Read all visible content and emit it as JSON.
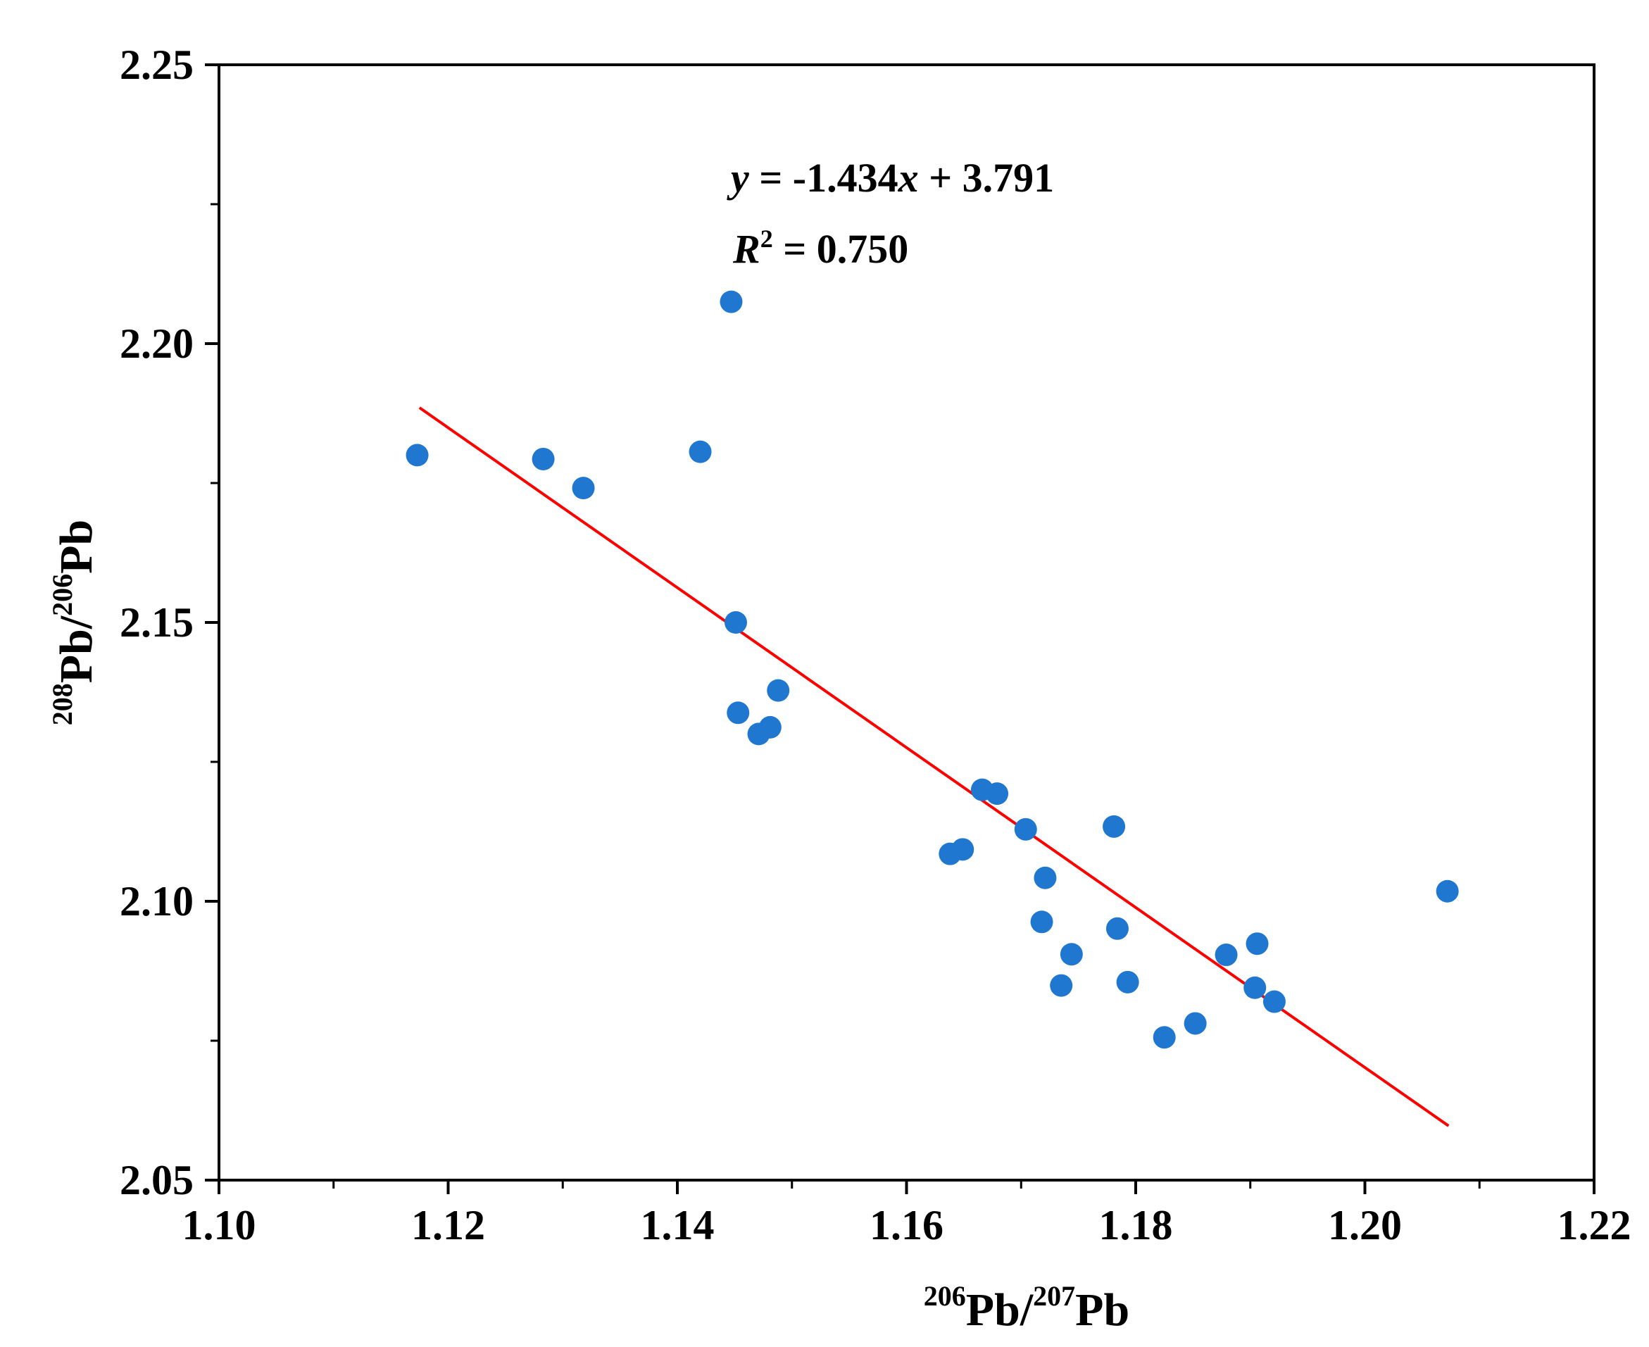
{
  "chart_data": {
    "type": "scatter",
    "xlabel": {
      "iso_a": "206",
      "el_a": "Pb",
      "sep": "/",
      "iso_b": "207",
      "el_b": "Pb"
    },
    "ylabel": {
      "iso_a": "208",
      "el_a": "Pb",
      "sep": "/",
      "iso_b": "206",
      "el_b": "Pb"
    },
    "xlim": [
      1.1,
      1.22
    ],
    "ylim": [
      2.05,
      2.25
    ],
    "x_ticks": [
      "1.10",
      "1.12",
      "1.14",
      "1.16",
      "1.18",
      "1.20",
      "1.22"
    ],
    "y_ticks": [
      "2.05",
      "2.10",
      "2.15",
      "2.20",
      "2.25"
    ],
    "x_minor_step": 0.01,
    "y_minor_step": 0.025,
    "grid": false,
    "point_color": "#1f77d0",
    "fit_color": "#ff0000",
    "fit": {
      "slope": -1.434,
      "intercept": 3.791,
      "x_range": [
        1.1175,
        1.2073
      ],
      "eq_y": "y",
      "eq_mid": " = -1.434",
      "eq_x": "x",
      "eq_end": " + 3.791",
      "r2_r": "R",
      "r2_sup": "2",
      "r2_value": " = 0.750"
    },
    "points": [
      {
        "x": 1.1173,
        "y": 2.18
      },
      {
        "x": 1.1283,
        "y": 2.1793
      },
      {
        "x": 1.1318,
        "y": 2.1741
      },
      {
        "x": 1.142,
        "y": 2.1806
      },
      {
        "x": 1.1447,
        "y": 2.2075
      },
      {
        "x": 1.1451,
        "y": 2.15
      },
      {
        "x": 1.1453,
        "y": 2.1338
      },
      {
        "x": 1.1471,
        "y": 2.13
      },
      {
        "x": 1.1481,
        "y": 2.1312
      },
      {
        "x": 1.1488,
        "y": 2.1378
      },
      {
        "x": 1.1638,
        "y": 2.1085
      },
      {
        "x": 1.1649,
        "y": 2.1093
      },
      {
        "x": 1.1666,
        "y": 2.12
      },
      {
        "x": 1.1679,
        "y": 2.1193
      },
      {
        "x": 1.1704,
        "y": 2.1129
      },
      {
        "x": 1.1718,
        "y": 2.0963
      },
      {
        "x": 1.1721,
        "y": 2.1042
      },
      {
        "x": 1.1735,
        "y": 2.0849
      },
      {
        "x": 1.1744,
        "y": 2.0905
      },
      {
        "x": 1.1781,
        "y": 2.1134
      },
      {
        "x": 1.1784,
        "y": 2.0951
      },
      {
        "x": 1.1793,
        "y": 2.0855
      },
      {
        "x": 1.1825,
        "y": 2.0756
      },
      {
        "x": 1.1852,
        "y": 2.0781
      },
      {
        "x": 1.1879,
        "y": 2.0904
      },
      {
        "x": 1.1904,
        "y": 2.0845
      },
      {
        "x": 1.1906,
        "y": 2.0924
      },
      {
        "x": 1.1921,
        "y": 2.082
      },
      {
        "x": 1.2072,
        "y": 2.1018
      }
    ]
  }
}
